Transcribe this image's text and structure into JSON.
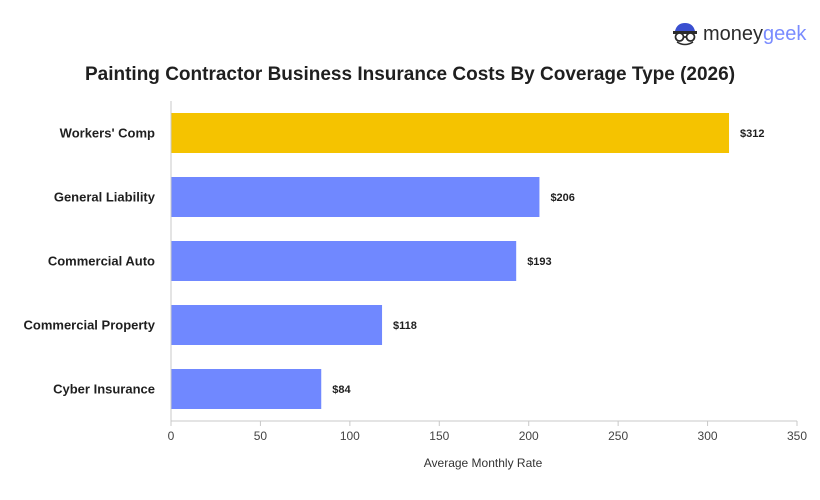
{
  "logo": {
    "text_main": "money",
    "text_accent": "geek",
    "icon": "geek-glasses-icon"
  },
  "colors": {
    "highlight": "#F5C300",
    "bar": "#7088FF",
    "axis": "#c8c8c8",
    "tick": "#c8c8c8"
  },
  "chart_data": {
    "type": "bar",
    "orientation": "horizontal",
    "title": "Painting Contractor Business Insurance Costs By Coverage Type (2026)",
    "xlabel": "Average Monthly Rate",
    "ylabel": "",
    "categories": [
      "Workers' Comp",
      "General Liability",
      "Commercial Auto",
      "Commercial Property",
      "Cyber Insurance"
    ],
    "values": [
      312,
      206,
      193,
      118,
      84
    ],
    "value_labels": [
      "$312",
      "$206",
      "$193",
      "$118",
      "$84"
    ],
    "highlighted_category": "Workers' Comp",
    "xlim": [
      0,
      350
    ],
    "xticks": [
      0,
      50,
      100,
      150,
      200,
      250,
      300,
      350
    ],
    "grid": false,
    "legend": "none"
  }
}
